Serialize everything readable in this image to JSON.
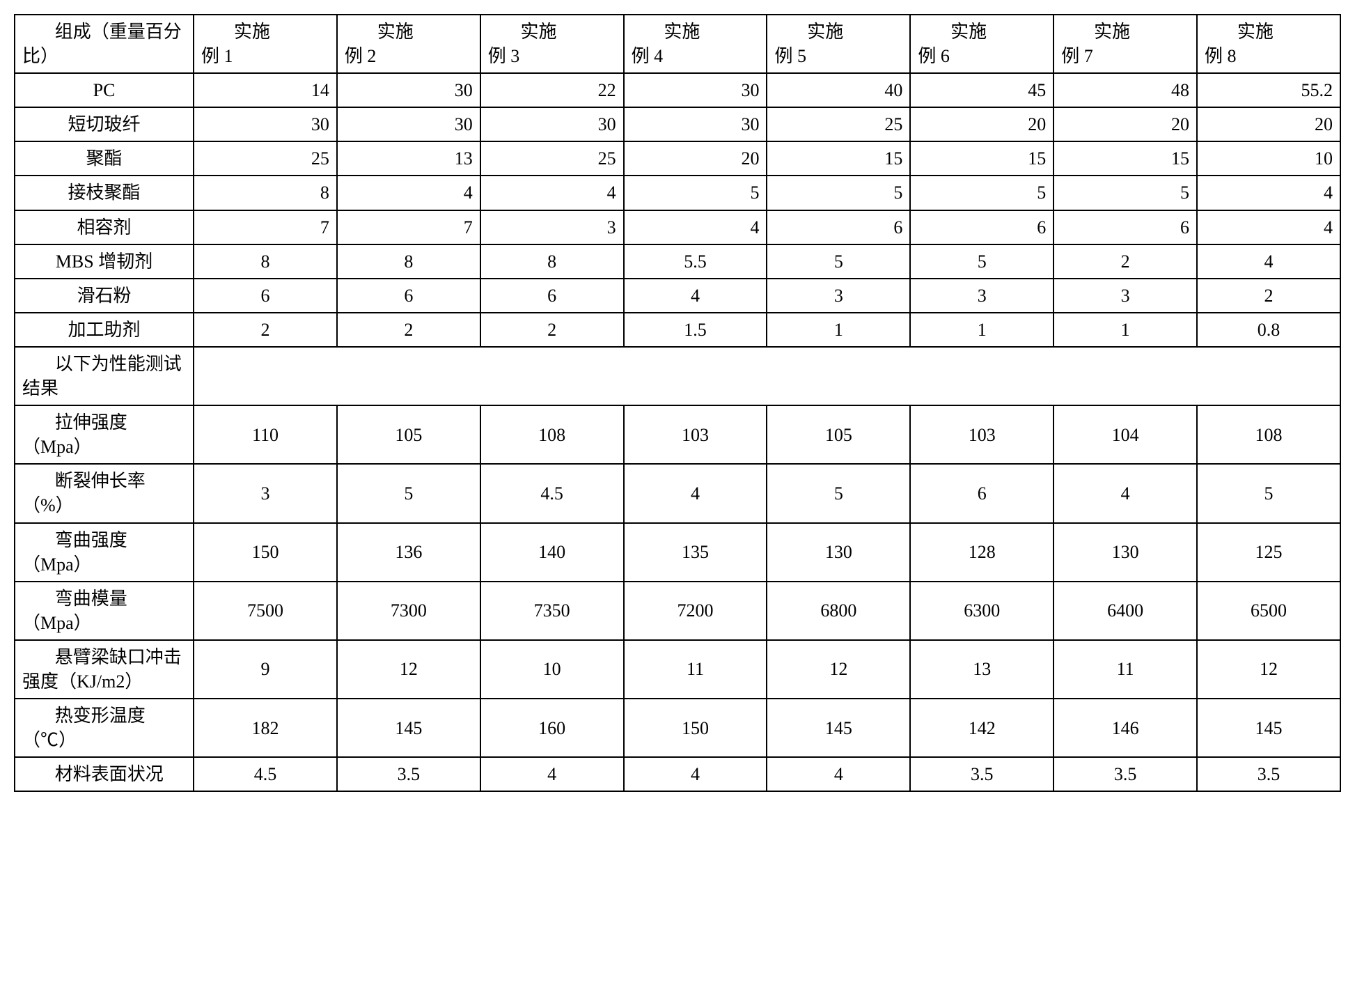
{
  "table": {
    "background_color": "#ffffff",
    "border_color": "#000000",
    "font_family": "SimSun, Times New Roman, serif",
    "header_fontsize": 26,
    "cell_fontsize": 26,
    "columns": {
      "row_label_header": "组成（重量百分比）",
      "col_prefix": "实施例",
      "col_labels": [
        "实施\n例 1",
        "实施\n例 2",
        "实施\n例 3",
        "实施\n例 4",
        "实施\n例 5",
        "实施\n例 6",
        "实施\n例 7",
        "实施\n例 8"
      ]
    },
    "composition_rows": [
      {
        "label": "PC",
        "values": [
          "14",
          "30",
          "22",
          "30",
          "40",
          "45",
          "48",
          "55.2"
        ]
      },
      {
        "label": "短切玻纤",
        "values": [
          "30",
          "30",
          "30",
          "30",
          "25",
          "20",
          "20",
          "20"
        ]
      },
      {
        "label": "聚酯",
        "values": [
          "25",
          "13",
          "25",
          "20",
          "15",
          "15",
          "15",
          "10"
        ]
      },
      {
        "label": "接枝聚酯",
        "values": [
          "8",
          "4",
          "4",
          "5",
          "5",
          "5",
          "5",
          "4"
        ]
      },
      {
        "label": "相容剂",
        "values": [
          "7",
          "7",
          "3",
          "4",
          "6",
          "6",
          "6",
          "4"
        ]
      },
      {
        "label": "MBS 增韧剂",
        "values": [
          "8",
          "8",
          "8",
          "5.5",
          "5",
          "5",
          "2",
          "4"
        ]
      },
      {
        "label": "滑石粉",
        "values": [
          "6",
          "6",
          "6",
          "4",
          "3",
          "3",
          "3",
          "2"
        ]
      },
      {
        "label": "加工助剂",
        "values": [
          "2",
          "2",
          "2",
          "1.5",
          "1",
          "1",
          "1",
          "0.8"
        ]
      }
    ],
    "section_header": "以下为性能测试结果",
    "performance_rows": [
      {
        "label": "拉伸强度（Mpa）",
        "values": [
          "110",
          "105",
          "108",
          "103",
          "105",
          "103",
          "104",
          "108"
        ]
      },
      {
        "label": "断裂伸长率（%）",
        "values": [
          "3",
          "5",
          "4.5",
          "4",
          "5",
          "6",
          "4",
          "5"
        ]
      },
      {
        "label": "弯曲强度（Mpa）",
        "values": [
          "150",
          "136",
          "140",
          "135",
          "130",
          "128",
          "130",
          "125"
        ]
      },
      {
        "label": "弯曲模量（Mpa）",
        "values": [
          "7500",
          "7300",
          "7350",
          "7200",
          "6800",
          "6300",
          "6400",
          "6500"
        ]
      },
      {
        "label": "悬臂梁缺口冲击强度（KJ/m2）",
        "values": [
          "9",
          "12",
          "10",
          "11",
          "12",
          "13",
          "11",
          "12"
        ]
      },
      {
        "label": "热变形温度（℃）",
        "values": [
          "182",
          "145",
          "160",
          "150",
          "145",
          "142",
          "146",
          "145"
        ]
      },
      {
        "label": "材料表面状况",
        "values": [
          "4.5",
          "3.5",
          "4",
          "4",
          "4",
          "3.5",
          "3.5",
          "3.5"
        ]
      }
    ]
  }
}
